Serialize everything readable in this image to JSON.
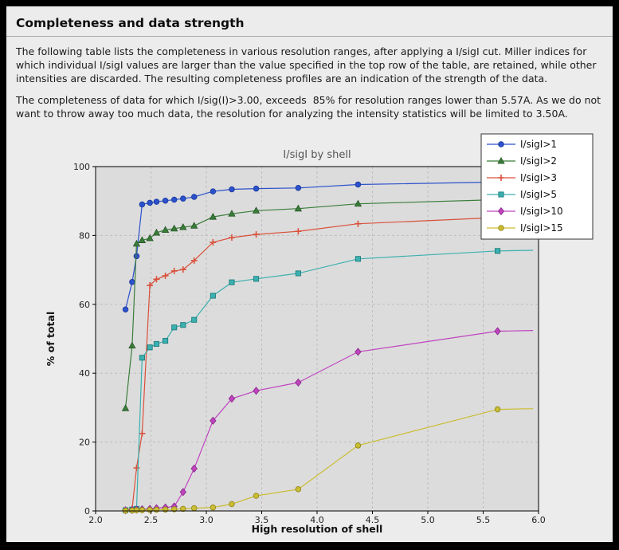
{
  "page": {
    "title": "Completeness and data strength",
    "paragraph1": "The following table lists the completeness in various resolution ranges, after applying a I/sigI cut. Miller indices for which individual I/sigI values are larger than the value specified in the top row of the table, are retained, while other intensities are discarded. The resulting completeness profiles are an indication of the strength of the data.",
    "paragraph2": "The completeness of data for which I/sig(I)>3.00, exceeds  85% for resolution ranges lower than 5.57A. As we do not want to throw away too much data, the resolution for analyzing the intensity statistics will be limited to 3.50A."
  },
  "chart_data": {
    "type": "line",
    "title": "I/sigI by shell",
    "xlabel": "High resolution of shell",
    "ylabel": "% of total",
    "xlim": [
      2.0,
      6.0
    ],
    "ylim": [
      0,
      100
    ],
    "xticks": [
      2.0,
      2.5,
      3.0,
      3.5,
      4.0,
      4.5,
      5.0,
      5.5,
      6.0
    ],
    "yticks": [
      0,
      20,
      40,
      60,
      80,
      100
    ],
    "grid": true,
    "legend_position": "top-right",
    "style": {
      "figure_bg": "#ececec",
      "plot_bg": "#dcdcdc",
      "grid_color": "#bdbdbd",
      "axis_color": "#000000",
      "title_color": "#555555",
      "legend_bg": "#ffffff",
      "legend_border": "#333333"
    },
    "x": [
      2.27,
      2.33,
      2.37,
      2.42,
      2.49,
      2.55,
      2.63,
      2.71,
      2.79,
      2.89,
      3.06,
      3.23,
      3.45,
      3.83,
      4.37,
      5.63
    ],
    "series": [
      {
        "name": "I/sigI>1",
        "color": "#2c51cc",
        "edge": "#1c3a9e",
        "marker": "circle",
        "y": [
          58.5,
          66.5,
          74.0,
          89.0,
          89.5,
          89.8,
          90.1,
          90.4,
          90.7,
          91.2,
          92.8,
          93.4,
          93.6,
          93.8,
          94.8,
          95.5
        ],
        "line_end": [
          5.95,
          95.8
        ]
      },
      {
        "name": "I/sigI>2",
        "color": "#3a7d3a",
        "edge": "#245524",
        "marker": "triangle",
        "y": [
          29.8,
          48.0,
          77.6,
          78.6,
          79.2,
          80.8,
          81.6,
          82.0,
          82.4,
          82.8,
          85.4,
          86.3,
          87.2,
          87.8,
          89.2,
          90.4
        ],
        "line_end": [
          5.95,
          90.7
        ]
      },
      {
        "name": "I/sigI>3",
        "color": "#d9503b",
        "edge": "#d9503b",
        "marker": "plus",
        "y": [
          0.3,
          0.6,
          12.5,
          22.5,
          65.5,
          67.3,
          68.3,
          69.7,
          70.1,
          72.7,
          78.0,
          79.4,
          80.3,
          81.2,
          83.4,
          85.2
        ],
        "line_end": [
          5.95,
          85.4
        ]
      },
      {
        "name": "I/sigI>5",
        "color": "#3cb0b0",
        "edge": "#1d7d7d",
        "marker": "square",
        "y": [
          0.2,
          0.4,
          0.6,
          44.5,
          47.5,
          48.5,
          49.4,
          53.3,
          54.0,
          55.5,
          62.5,
          66.4,
          67.4,
          69.0,
          73.2,
          75.5
        ],
        "line_end": [
          5.95,
          75.7
        ]
      },
      {
        "name": "I/sigI>10",
        "color": "#c044c0",
        "edge": "#8a2b8a",
        "marker": "diamond",
        "y": [
          0.2,
          0.3,
          0.4,
          0.5,
          0.6,
          0.8,
          1.0,
          1.3,
          5.5,
          12.3,
          26.2,
          32.6,
          34.9,
          37.3,
          46.2,
          52.2
        ],
        "line_end": [
          5.95,
          52.4
        ]
      },
      {
        "name": "I/sigI>15",
        "color": "#cbbd33",
        "edge": "#938a1e",
        "marker": "circle",
        "y": [
          0.1,
          0.15,
          0.2,
          0.25,
          0.3,
          0.35,
          0.4,
          0.5,
          0.6,
          0.8,
          1.0,
          2.0,
          4.4,
          6.3,
          19.0,
          29.5
        ],
        "line_end": [
          5.95,
          29.7
        ]
      }
    ]
  }
}
